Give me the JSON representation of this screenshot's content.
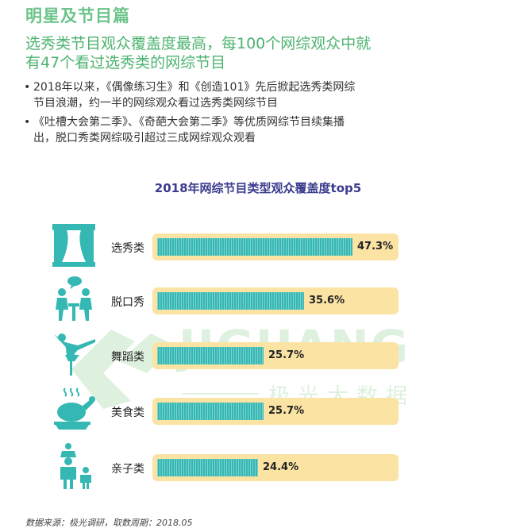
{
  "section_title": "明星及节目篇",
  "headline_lines": [
    "选秀类节目观众覆盖度最高，每100个网综观众中就",
    "有47个看过选秀类的网综节目"
  ],
  "bullets": [
    {
      "line1": "2018年以来，《偶像练习生》和《创造101》先后掀起选秀类网综",
      "line2": "节目浪潮，约一半的网综观众看过选秀类网综节目"
    },
    {
      "line1": "《吐槽大会第二季》、《奇葩大会第二季》等优质网综节目续集播",
      "line2": "出，脱口秀类网综吸引超过三成网综观众观看"
    }
  ],
  "watermark": {
    "word": "JIGUANG",
    "sub": "极光大数据"
  },
  "source": "数据来源：极光调研，取数周期：2018.05",
  "colors": {
    "bar": "#35b8b3",
    "track": "#fbe3a4",
    "icon": "#35b8b3",
    "accent": "#4db36f",
    "title": "#3b3b8f"
  },
  "chart_data": {
    "type": "bar",
    "orientation": "horizontal",
    "title": "2018年网综节目类型观众覆盖度top5",
    "categories": [
      "选秀类",
      "脱口秀",
      "舞蹈类",
      "美食类",
      "亲子类"
    ],
    "values": [
      47.3,
      35.6,
      25.7,
      25.7,
      24.4
    ],
    "value_labels": [
      "47.3%",
      "35.6%",
      "25.7%",
      "25.7%",
      "24.4%"
    ],
    "icons": [
      "stage-icon",
      "talk-show-icon",
      "dancer-icon",
      "roast-chicken-icon",
      "parent-child-icon"
    ],
    "xlim": [
      0,
      47.3
    ],
    "unit": "%"
  }
}
